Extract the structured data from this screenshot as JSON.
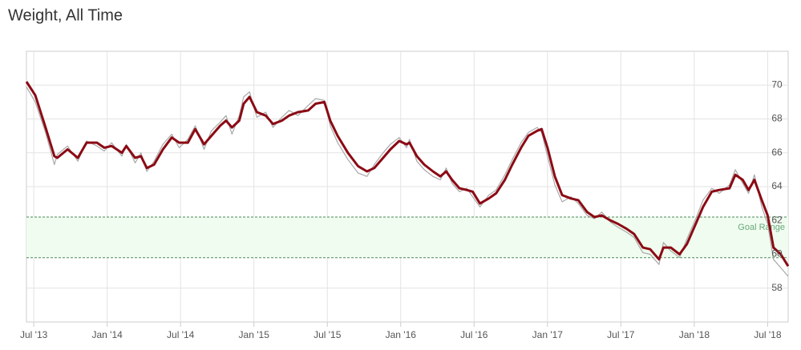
{
  "chart_data": {
    "type": "line",
    "title": "Weight, All Time",
    "x": [
      2013.45,
      2013.51,
      2013.58,
      2013.64,
      2013.66,
      2013.73,
      2013.8,
      2013.86,
      2013.93,
      2013.98,
      2014.03,
      2014.1,
      2014.13,
      2014.19,
      2014.23,
      2014.27,
      2014.32,
      2014.38,
      2014.44,
      2014.49,
      2014.55,
      2014.6,
      2014.66,
      2014.71,
      2014.77,
      2014.81,
      2014.85,
      2014.9,
      2014.93,
      2014.97,
      2015.02,
      2015.08,
      2015.13,
      2015.19,
      2015.24,
      2015.3,
      2015.37,
      2015.42,
      2015.48,
      2015.52,
      2015.57,
      2015.64,
      2015.71,
      2015.77,
      2015.82,
      2015.88,
      2015.93,
      2015.99,
      2016.04,
      2016.06,
      2016.11,
      2016.16,
      2016.22,
      2016.27,
      2016.31,
      2016.35,
      2016.4,
      2016.45,
      2016.49,
      2016.54,
      2016.6,
      2016.65,
      2016.71,
      2016.76,
      2016.82,
      2016.87,
      2016.93,
      2016.96,
      2017.0,
      2017.05,
      2017.1,
      2017.16,
      2017.21,
      2017.27,
      2017.32,
      2017.37,
      2017.43,
      2017.48,
      2017.54,
      2017.59,
      2017.65,
      2017.7,
      2017.76,
      2017.79,
      2017.84,
      2017.9,
      2017.95,
      2018.01,
      2018.06,
      2018.12,
      2018.17,
      2018.24,
      2018.28,
      2018.33,
      2018.37,
      2018.41,
      2018.46,
      2018.5,
      2018.54,
      2018.59,
      2018.64
    ],
    "series": [
      {
        "color": "#a8a8a8",
        "values": [
          69.9,
          69.0,
          67.2,
          65.3,
          65.9,
          66.4,
          65.5,
          66.7,
          66.4,
          66.1,
          66.6,
          65.8,
          66.5,
          65.4,
          66.0,
          64.9,
          65.5,
          66.5,
          67.1,
          66.3,
          66.8,
          67.6,
          66.2,
          67.3,
          67.8,
          68.2,
          67.1,
          68.2,
          69.3,
          69.6,
          68.1,
          68.4,
          67.5,
          68.1,
          68.5,
          68.2,
          68.8,
          69.2,
          69.1,
          67.6,
          66.6,
          65.6,
          64.8,
          64.6,
          65.3,
          66.0,
          66.5,
          66.9,
          66.3,
          66.8,
          65.5,
          65.0,
          64.6,
          64.4,
          65.1,
          64.2,
          63.7,
          63.9,
          63.4,
          62.8,
          63.5,
          63.8,
          64.7,
          65.6,
          66.6,
          67.2,
          67.5,
          67.2,
          65.8,
          64.1,
          63.1,
          63.4,
          63.0,
          62.3,
          62.1,
          62.5,
          61.9,
          61.6,
          61.3,
          61.0,
          60.1,
          60.0,
          59.4,
          60.7,
          60.2,
          59.8,
          60.9,
          62.1,
          63.2,
          63.9,
          63.6,
          64.1,
          65.0,
          64.2,
          63.6,
          64.7,
          62.8,
          61.8,
          59.7,
          59.2,
          58.7
        ]
      },
      {
        "color": "#8b0a14",
        "values": [
          70.2,
          69.4,
          67.5,
          65.8,
          65.7,
          66.2,
          65.7,
          66.6,
          66.6,
          66.3,
          66.4,
          66.0,
          66.4,
          65.7,
          65.8,
          65.1,
          65.3,
          66.2,
          66.9,
          66.6,
          66.6,
          67.4,
          66.5,
          67.0,
          67.6,
          67.9,
          67.5,
          67.9,
          68.9,
          69.3,
          68.4,
          68.2,
          67.7,
          67.9,
          68.2,
          68.4,
          68.5,
          68.9,
          69.0,
          67.9,
          67.0,
          66.0,
          65.2,
          64.9,
          65.1,
          65.7,
          66.2,
          66.7,
          66.5,
          66.6,
          65.8,
          65.3,
          64.9,
          64.6,
          64.9,
          64.4,
          63.9,
          63.8,
          63.7,
          63.0,
          63.3,
          63.6,
          64.4,
          65.3,
          66.3,
          67.0,
          67.3,
          67.4,
          66.3,
          64.6,
          63.5,
          63.3,
          63.2,
          62.5,
          62.2,
          62.3,
          62.0,
          61.8,
          61.5,
          61.2,
          60.4,
          60.3,
          59.7,
          60.4,
          60.4,
          60.0,
          60.6,
          61.8,
          62.8,
          63.7,
          63.8,
          63.9,
          64.7,
          64.4,
          63.8,
          64.4,
          63.2,
          62.3,
          60.4,
          60.0,
          59.3
        ]
      }
    ],
    "goal_range": [
      59.8,
      62.2
    ],
    "goal_label": "Goal Range",
    "xlim": [
      2013.45,
      2018.64
    ],
    "xticks": [
      {
        "value": 2013.5,
        "label": "Jul '13"
      },
      {
        "value": 2014.0,
        "label": "Jan '14"
      },
      {
        "value": 2014.5,
        "label": "Jul '14"
      },
      {
        "value": 2015.0,
        "label": "Jan '15"
      },
      {
        "value": 2015.5,
        "label": "Jul '15"
      },
      {
        "value": 2016.0,
        "label": "Jan '16"
      },
      {
        "value": 2016.5,
        "label": "Jul '16"
      },
      {
        "value": 2017.0,
        "label": "Jan '17"
      },
      {
        "value": 2017.5,
        "label": "Jul '17"
      },
      {
        "value": 2018.0,
        "label": "Jan '18"
      },
      {
        "value": 2018.5,
        "label": "Jul '18"
      }
    ],
    "ylim": [
      56,
      72
    ],
    "yticks": [
      58,
      60,
      62,
      64,
      66,
      68,
      70
    ],
    "grid": true
  }
}
